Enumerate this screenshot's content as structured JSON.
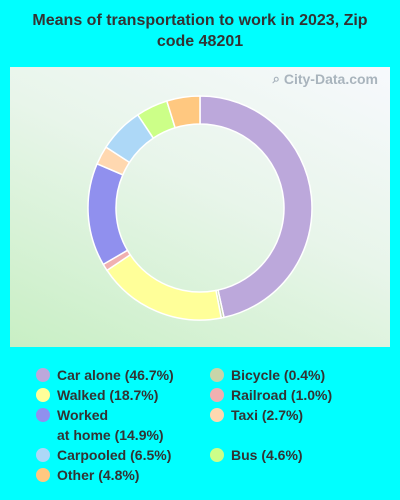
{
  "chart_data": {
    "type": "pie",
    "title": "Means of transportation to work in 2023, Zip code 48201",
    "donut": true,
    "slices": [
      {
        "label": "Car alone (46.7%)",
        "value": 46.7,
        "color": "#bca8db"
      },
      {
        "label": "Bicycle (0.4%)",
        "value": 0.4,
        "color": "#c8d5a9"
      },
      {
        "label": "Walked (18.7%)",
        "value": 18.7,
        "color": "#ffff99"
      },
      {
        "label": "Railroad (1.0%)",
        "value": 1.0,
        "color": "#f0b0b0"
      },
      {
        "label": "Worked at home (14.9%)",
        "value": 14.9,
        "color": "#9090ee"
      },
      {
        "label": "Taxi (2.7%)",
        "value": 2.7,
        "color": "#ffd8b0"
      },
      {
        "label": "Carpooled (6.5%)",
        "value": 6.5,
        "color": "#add8f7"
      },
      {
        "label": "Bus (4.6%)",
        "value": 4.6,
        "color": "#ccff88"
      },
      {
        "label": "Other (4.8%)",
        "value": 4.8,
        "color": "#ffc880"
      }
    ],
    "legend": {
      "placement": "bottom",
      "left_column": [
        {
          "line1": "Car alone (46.7%)",
          "color": "#bca8db"
        },
        {
          "line1": "Walked (18.7%)",
          "color": "#ffff99"
        },
        {
          "line1": "Worked",
          "line2": "at home (14.9%)",
          "color": "#9090ee"
        },
        {
          "line1": "Carpooled (6.5%)",
          "color": "#add8f7"
        },
        {
          "line1": "Other (4.8%)",
          "color": "#ffc880"
        }
      ],
      "right_column": [
        {
          "line1": "Bicycle (0.4%)",
          "color": "#c8d5a9"
        },
        {
          "line1": "Railroad (1.0%)",
          "color": "#f0b0b0"
        },
        {
          "line1": "Taxi (2.7%)",
          "color": "#ffd8b0"
        },
        {
          "line1": "Bus (4.6%)",
          "color": "#ccff88"
        }
      ]
    }
  },
  "watermark": {
    "text": "City-Data.com",
    "icon": "magnifier-icon"
  },
  "page": {
    "background": "#00ffff"
  }
}
